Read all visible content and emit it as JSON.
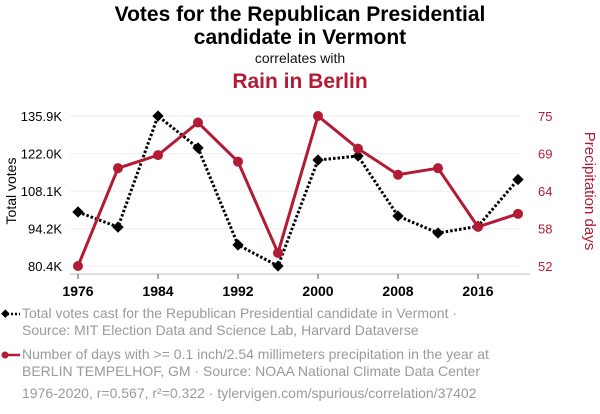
{
  "chart_data": {
    "type": "line",
    "title": "Votes for the Republican Presidential candidate in Vermont",
    "subtitle": "correlates with",
    "title2": "Rain in Berlin",
    "x": [
      1976,
      1980,
      1984,
      1988,
      1992,
      1996,
      2000,
      2004,
      2008,
      2012,
      2016,
      2020
    ],
    "x_ticks": [
      1976,
      1984,
      1992,
      2000,
      2008,
      2016
    ],
    "xlim": [
      1975,
      2021
    ],
    "series": [
      {
        "name": "Total votes cast for the Republican Presidential candidate in Vermont",
        "axis": "left",
        "color": "#000000",
        "marker": "diamond",
        "dash": true,
        "values": [
          100.4,
          94.8,
          135.9,
          124.1,
          88.2,
          80.4,
          119.6,
          121.1,
          98.9,
          92.6,
          95.1,
          112.4
        ]
      },
      {
        "name": "Number of days with >= 0.1 inch/2.54 millimeters precipitation in the year at BERLIN TEMPELHOF, GM",
        "axis": "right",
        "color": "#b31b34",
        "marker": "circle",
        "dash": false,
        "values": [
          52,
          67,
          69,
          74,
          68,
          54,
          75,
          70,
          66,
          67,
          58,
          60
        ]
      }
    ],
    "ylabel": "Total votes",
    "ylabel_right": "Precipitation days",
    "ylim": [
      80.4,
      135.9
    ],
    "y_ticks": [
      "135.9K",
      "122.0K",
      "108.1K",
      "94.2K",
      "80.4K"
    ],
    "y_tick_values": [
      135.9,
      122.0,
      108.1,
      94.2,
      80.4
    ],
    "ylim_right": [
      52,
      75
    ],
    "y_ticks_right": [
      "75",
      "69",
      "64",
      "58",
      "52"
    ],
    "y_tick_values_right": [
      75,
      69.25,
      63.5,
      57.75,
      52
    ],
    "grid": true
  },
  "legend": {
    "item1_line1": "Total votes cast for the Republican Presidential candidate in Vermont ·",
    "item1_line2": "Source: MIT Election Data and Science Lab, Harvard Dataverse",
    "item2_line1": "Number of days with >= 0.1 inch/2.54 millimeters precipitation in the year at",
    "item2_line2": "BERLIN TEMPELHOF, GM · Source: NOAA National Climate Data Center"
  },
  "footer": "1976-2020, r=0.567, r²=0.322 · tylervigen.com/spurious/correlation/37402"
}
